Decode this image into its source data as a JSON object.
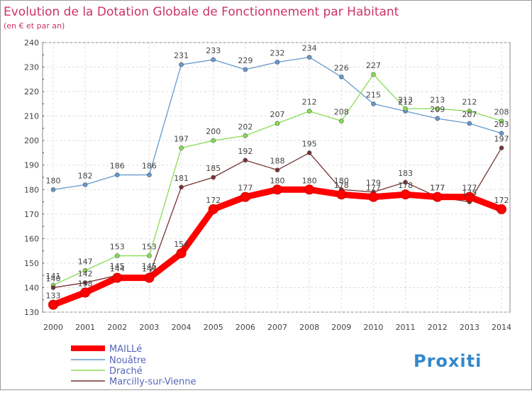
{
  "chart_data": {
    "type": "line",
    "title": "Evolution de la Dotation Globale de Fonctionnement par Habitant",
    "subtitle": "(en € et par an)",
    "xlabel": "",
    "ylabel": "",
    "x": [
      "2000",
      "2001",
      "2002",
      "2003",
      "2004",
      "2005",
      "2006",
      "2007",
      "2008",
      "2009",
      "2010",
      "2011",
      "2012",
      "2013",
      "2014"
    ],
    "ylim": [
      130,
      240
    ],
    "yticks": [
      "130",
      "140",
      "150",
      "160",
      "170",
      "180",
      "190",
      "200",
      "210",
      "220",
      "230",
      "240"
    ],
    "grid": true,
    "legend": "bottom-left",
    "series": [
      {
        "name": "MAILLé",
        "color": "#ff0000",
        "values": [
          133,
          138,
          144,
          144,
          154,
          172,
          177,
          180,
          180,
          178,
          177,
          178,
          177,
          177,
          172
        ],
        "labels": [
          "133",
          "138",
          "144",
          "144",
          "154",
          "172",
          "177",
          "180",
          "180",
          "178",
          "177",
          "178",
          "177",
          "177",
          "172"
        ]
      },
      {
        "name": "Nouâtre",
        "color": "#6699cc",
        "values": [
          180,
          182,
          186,
          186,
          231,
          233,
          229,
          232,
          234,
          226,
          215,
          212,
          209,
          207,
          203
        ],
        "labels": [
          "180",
          "182",
          "186",
          "186",
          "231",
          "233",
          "229",
          "232",
          "234",
          "226",
          "215",
          "212",
          "209",
          "207",
          "203"
        ]
      },
      {
        "name": "Draché",
        "color": "#88dd55",
        "values": [
          141,
          147,
          153,
          153,
          197,
          200,
          202,
          207,
          212,
          208,
          227,
          213,
          213,
          212,
          208
        ],
        "labels": [
          "141",
          "147",
          "153",
          "153",
          "197",
          "200",
          "202",
          "207",
          "212",
          "208",
          "227",
          "213",
          "213",
          "212",
          "208"
        ]
      },
      {
        "name": "Marcilly-sur-Vienne",
        "color": "#773333",
        "values": [
          140,
          142,
          145,
          145,
          181,
          185,
          192,
          188,
          195,
          180,
          179,
          183,
          177,
          175,
          197
        ],
        "labels": [
          "140",
          "142",
          "145",
          "145",
          "181",
          "185",
          "192",
          "188",
          "195",
          "180",
          "179",
          "183",
          "177",
          "175",
          "197"
        ]
      }
    ]
  },
  "logo": {
    "text": "Proxiti"
  }
}
